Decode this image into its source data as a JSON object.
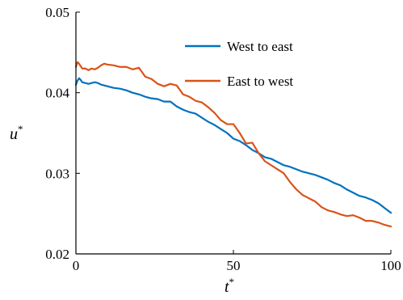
{
  "chart_data": {
    "type": "line",
    "xlabel": "t",
    "xlabel_sup": "*",
    "ylabel": "u",
    "ylabel_sup": "*",
    "xlim": [
      0,
      100
    ],
    "ylim": [
      0.02,
      0.05
    ],
    "xticks": [
      0,
      50,
      100
    ],
    "xtick_labels": [
      "0",
      "50",
      "100"
    ],
    "yticks": [
      0.02,
      0.03,
      0.04,
      0.05
    ],
    "ytick_labels": [
      "0.02",
      "0.03",
      "0.04",
      "0.05"
    ],
    "grid": false,
    "legend_position": "top-right",
    "series": [
      {
        "name": "West to east",
        "color": "#0072BD",
        "x": [
          0,
          0.5,
          1,
          1.5,
          2,
          3,
          4,
          5,
          6,
          7,
          8,
          9,
          10,
          12,
          14,
          16,
          18,
          20,
          22,
          24,
          26,
          28,
          30,
          32,
          34,
          36,
          38,
          40,
          42,
          44,
          46,
          48,
          50,
          52,
          54,
          56,
          58,
          60,
          62,
          64,
          66,
          68,
          70,
          72,
          74,
          76,
          78,
          80,
          82,
          84,
          86,
          88,
          90,
          92,
          94,
          96,
          98,
          100
        ],
        "y": [
          0.041,
          0.0415,
          0.0418,
          0.0416,
          0.0413,
          0.0412,
          0.0411,
          0.0412,
          0.0413,
          0.0412,
          0.041,
          0.0409,
          0.0408,
          0.0406,
          0.0405,
          0.0403,
          0.04,
          0.0398,
          0.0395,
          0.0393,
          0.0392,
          0.0389,
          0.0389,
          0.0383,
          0.0379,
          0.0376,
          0.0374,
          0.0369,
          0.0364,
          0.036,
          0.0355,
          0.035,
          0.0343,
          0.034,
          0.0335,
          0.0329,
          0.0325,
          0.032,
          0.0318,
          0.0314,
          0.031,
          0.0308,
          0.0305,
          0.0302,
          0.03,
          0.0298,
          0.0295,
          0.0292,
          0.0288,
          0.0285,
          0.028,
          0.0276,
          0.0272,
          0.027,
          0.0267,
          0.0263,
          0.0257,
          0.0251
        ]
      },
      {
        "name": "East to west",
        "color": "#D95319",
        "x": [
          0,
          0.5,
          1,
          1.5,
          2,
          3,
          4,
          5,
          6,
          7,
          8,
          9,
          10,
          12,
          14,
          16,
          18,
          20,
          22,
          24,
          26,
          28,
          30,
          32,
          34,
          36,
          38,
          40,
          42,
          44,
          46,
          48,
          50,
          52,
          54,
          56,
          58,
          60,
          62,
          64,
          66,
          68,
          70,
          72,
          74,
          76,
          78,
          80,
          82,
          84,
          86,
          88,
          90,
          92,
          94,
          96,
          98,
          100
        ],
        "y": [
          0.0432,
          0.0438,
          0.0436,
          0.0433,
          0.043,
          0.043,
          0.0428,
          0.043,
          0.0429,
          0.0431,
          0.0434,
          0.0436,
          0.0435,
          0.0434,
          0.0432,
          0.0432,
          0.0429,
          0.0431,
          0.042,
          0.0417,
          0.0411,
          0.0408,
          0.0411,
          0.0409,
          0.0398,
          0.0395,
          0.039,
          0.0388,
          0.0382,
          0.0375,
          0.0366,
          0.0361,
          0.0361,
          0.035,
          0.0337,
          0.0338,
          0.0325,
          0.0315,
          0.031,
          0.0305,
          0.03,
          0.0289,
          0.028,
          0.0273,
          0.0269,
          0.0265,
          0.0258,
          0.0254,
          0.0252,
          0.0249,
          0.0247,
          0.0248,
          0.0245,
          0.0241,
          0.0241,
          0.0239,
          0.0236,
          0.0234
        ]
      }
    ]
  }
}
